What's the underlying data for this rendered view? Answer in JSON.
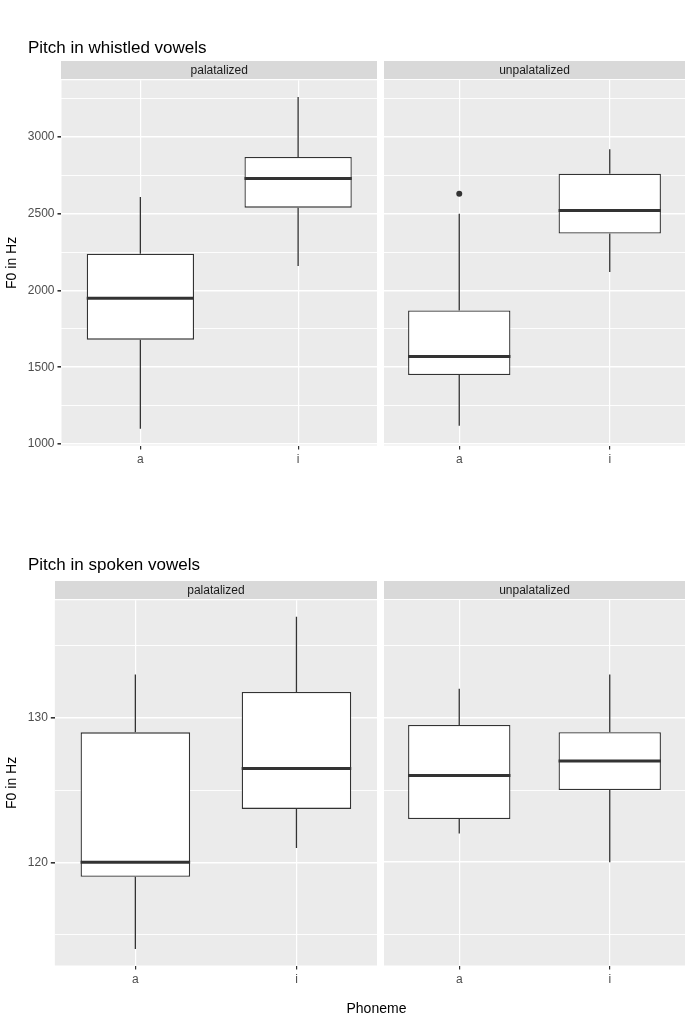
{
  "chart_data": [
    {
      "type": "box",
      "title": "Pitch in whistled vowels",
      "subtitle": "palatalized",
      "ylabel": "F0 in Hz",
      "categories": [
        "a",
        "i"
      ],
      "boxes": [
        {
          "low": 1100,
          "q1": 1680,
          "median": 1950,
          "q3": 2240,
          "high": 2610
        },
        {
          "low": 2160,
          "q1": 2540,
          "median": 2730,
          "q3": 2870,
          "high": 3260
        }
      ],
      "ylim": [
        990,
        3370
      ],
      "yticks": [
        {
          "value": 1000,
          "label": "1000"
        },
        {
          "value": 1250,
          "label": null
        },
        {
          "value": 1500,
          "label": "1500"
        },
        {
          "value": 1750,
          "label": null
        },
        {
          "value": 2000,
          "label": "2000"
        },
        {
          "value": 2250,
          "label": null
        },
        {
          "value": 2500,
          "label": "2500"
        },
        {
          "value": 2750,
          "label": null
        },
        {
          "value": 3000,
          "label": "3000"
        },
        {
          "value": 3250,
          "label": null
        }
      ],
      "grid": true
    },
    {
      "type": "box",
      "subtitle": "unpalatalized",
      "categories": [
        "a",
        "i"
      ],
      "boxes": [
        {
          "low": 1120,
          "q1": 1450,
          "median": 1570,
          "q3": 1870,
          "high": 2500,
          "outliers": [
            2630
          ]
        },
        {
          "low": 2120,
          "q1": 2370,
          "median": 2520,
          "q3": 2760,
          "high": 2920
        }
      ],
      "ylim": [
        990,
        3370
      ],
      "yticks": [
        1000,
        {
          "value": 1250,
          "label": null
        },
        1500,
        {
          "value": 1750,
          "label": null
        },
        2000,
        {
          "value": 2250,
          "label": null
        },
        2500,
        {
          "value": 2750,
          "label": null
        },
        3000,
        {
          "value": 3250,
          "label": null
        }
      ],
      "grid": true,
      "tick_labels": "x"
    },
    {
      "type": "box",
      "title": "Pitch in spoken vowels",
      "subtitle": "palatalized",
      "ylabel": "F0 in Hz",
      "categories": [
        "a",
        "i"
      ],
      "boxes": [
        {
          "low": 114,
          "q1": 119,
          "median": 120,
          "q3": 129,
          "high": 133
        },
        {
          "low": 121,
          "q1": 123.7,
          "median": 126.5,
          "q3": 131.8,
          "high": 137
        }
      ],
      "ylim": [
        112.85,
        138.15
      ],
      "yticks": [
        {
          "value": 115,
          "label": null
        },
        {
          "value": 120,
          "label": "120"
        },
        {
          "value": 125,
          "label": null
        },
        {
          "value": 130,
          "label": "130"
        },
        {
          "value": 135,
          "label": null
        }
      ],
      "grid": true
    },
    {
      "type": "box",
      "subtitle": "unpalatalized",
      "xlabel": "Phoneme",
      "categories": [
        "a",
        "i"
      ],
      "boxes": [
        {
          "low": 122,
          "q1": 123,
          "median": 126,
          "q3": 129.5,
          "high": 132
        },
        {
          "low": 120,
          "q1": 125,
          "median": 127,
          "q3": 129,
          "high": 133
        }
      ],
      "ylim": [
        112.85,
        138.15
      ],
      "yticks": [
        {
          "value": 115,
          "label": null
        },
        120,
        {
          "value": 125,
          "label": null
        },
        130,
        {
          "value": 135,
          "label": null
        }
      ],
      "grid": true,
      "tick_labels": "x"
    }
  ]
}
